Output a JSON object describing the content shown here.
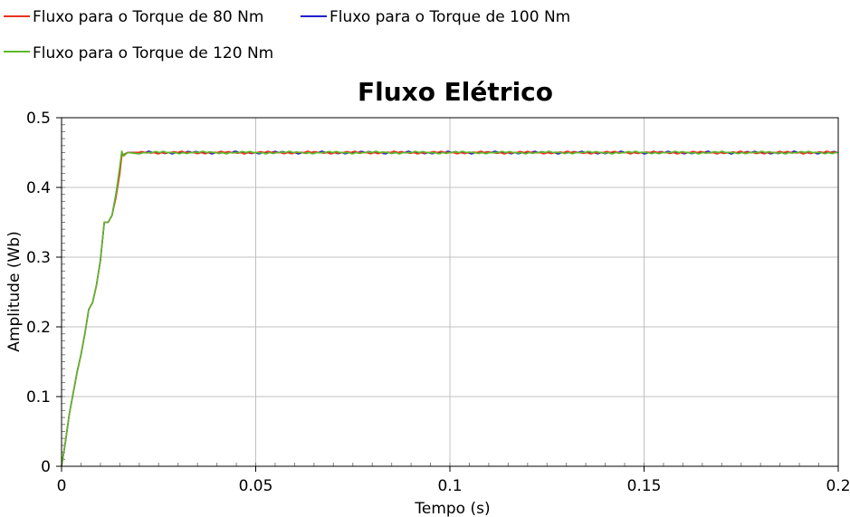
{
  "chart_data": {
    "type": "line",
    "title": "Fluxo Elétrico",
    "xlabel": "Tempo (s)",
    "ylabel": "Amplitude (Wb)",
    "xlim": [
      0,
      0.2
    ],
    "ylim": [
      0,
      0.5
    ],
    "x_ticks": [
      "0",
      "0.05",
      "0.1",
      "0.15",
      "0.2"
    ],
    "x_tick_values": [
      0,
      0.05,
      0.1,
      0.15,
      0.2
    ],
    "y_ticks": [
      "0",
      "0.1",
      "0.2",
      "0.3",
      "0.4",
      "0.5"
    ],
    "y_tick_values": [
      0,
      0.1,
      0.2,
      0.3,
      0.4,
      0.5
    ],
    "grid": true,
    "legend_position": "top-left",
    "series": [
      {
        "name": "Fluxo para o Torque de 80 Nm",
        "color": "#e8331e",
        "x": [
          0,
          0.001,
          0.002,
          0.003,
          0.004,
          0.005,
          0.006,
          0.007,
          0.008,
          0.009,
          0.01,
          0.011,
          0.012,
          0.013,
          0.014,
          0.015,
          0.0155,
          0.016,
          0.017,
          0.02,
          0.05,
          0.1,
          0.15,
          0.2
        ],
        "values": [
          0,
          0.035,
          0.075,
          0.105,
          0.135,
          0.16,
          0.19,
          0.225,
          0.235,
          0.26,
          0.295,
          0.35,
          0.35,
          0.36,
          0.385,
          0.42,
          0.445,
          0.447,
          0.45,
          0.45,
          0.45,
          0.45,
          0.45,
          0.45
        ]
      },
      {
        "name": "Fluxo para o Torque de 100 Nm",
        "color": "#1f1fcc",
        "x": [
          0,
          0.001,
          0.002,
          0.003,
          0.004,
          0.005,
          0.006,
          0.007,
          0.008,
          0.009,
          0.01,
          0.011,
          0.012,
          0.013,
          0.014,
          0.015,
          0.0155,
          0.016,
          0.017,
          0.02,
          0.05,
          0.1,
          0.15,
          0.2
        ],
        "values": [
          0,
          0.035,
          0.075,
          0.105,
          0.135,
          0.16,
          0.19,
          0.225,
          0.235,
          0.26,
          0.295,
          0.35,
          0.35,
          0.36,
          0.39,
          0.425,
          0.448,
          0.447,
          0.45,
          0.45,
          0.45,
          0.45,
          0.45,
          0.45
        ]
      },
      {
        "name": "Fluxo para o Torque de 120 Nm",
        "color": "#5cb82a",
        "x": [
          0,
          0.001,
          0.002,
          0.003,
          0.004,
          0.005,
          0.006,
          0.007,
          0.008,
          0.009,
          0.01,
          0.011,
          0.012,
          0.013,
          0.014,
          0.015,
          0.0155,
          0.016,
          0.017,
          0.02,
          0.05,
          0.1,
          0.15,
          0.2
        ],
        "values": [
          0,
          0.035,
          0.075,
          0.105,
          0.135,
          0.16,
          0.19,
          0.225,
          0.235,
          0.26,
          0.295,
          0.35,
          0.35,
          0.36,
          0.39,
          0.43,
          0.452,
          0.445,
          0.45,
          0.45,
          0.45,
          0.45,
          0.45,
          0.45
        ]
      }
    ],
    "steady_state_ripple": 0.002
  }
}
